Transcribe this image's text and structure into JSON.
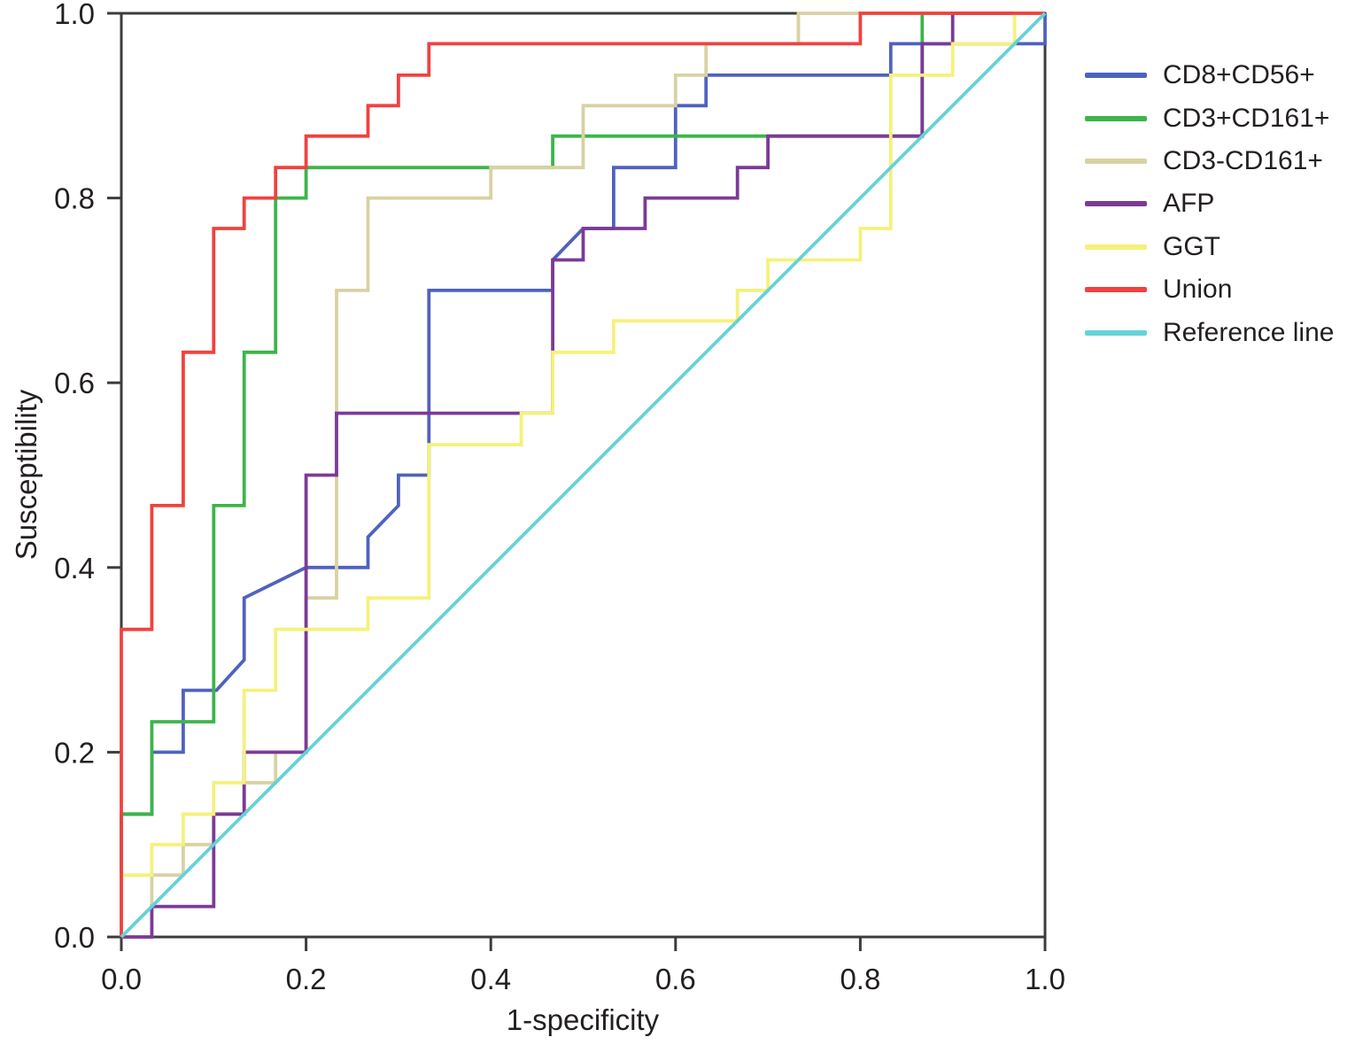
{
  "chart_data": {
    "type": "line",
    "subtype": "roc-step-curves",
    "title": "",
    "xlabel": "1-specificity",
    "ylabel": "Susceptibility",
    "xlim": [
      0,
      1
    ],
    "ylim": [
      0,
      1
    ],
    "grid": false,
    "legend_position": "right-outside",
    "axis_color": "#3c3c3c",
    "text_color": "#231f20",
    "background_color": "#ffffff",
    "x_ticks": [
      0.0,
      0.2,
      0.4,
      0.6,
      0.8,
      1.0
    ],
    "x_tick_labels": [
      "0.0",
      "0.2",
      "0.4",
      "0.6",
      "0.8",
      "1.0"
    ],
    "y_ticks": [
      0.0,
      0.2,
      0.4,
      0.6,
      0.8,
      1.0
    ],
    "y_tick_labels": [
      "0.0",
      "0.2",
      "0.4",
      "0.6",
      "0.8",
      "1.0"
    ],
    "series": [
      {
        "name": "CD8+CD56+",
        "color": "#4f62bf",
        "points": [
          [
            0,
            0
          ],
          [
            0,
            0.133
          ],
          [
            0.033,
            0.133
          ],
          [
            0.033,
            0.2
          ],
          [
            0.067,
            0.2
          ],
          [
            0.067,
            0.267
          ],
          [
            0.103,
            0.267
          ],
          [
            0.133,
            0.3
          ],
          [
            0.133,
            0.367
          ],
          [
            0.2,
            0.4
          ],
          [
            0.267,
            0.4
          ],
          [
            0.267,
            0.433
          ],
          [
            0.3,
            0.467
          ],
          [
            0.3,
            0.5
          ],
          [
            0.333,
            0.5
          ],
          [
            0.333,
            0.7
          ],
          [
            0.467,
            0.7
          ],
          [
            0.467,
            0.733
          ],
          [
            0.5,
            0.767
          ],
          [
            0.533,
            0.767
          ],
          [
            0.533,
            0.833
          ],
          [
            0.6,
            0.833
          ],
          [
            0.6,
            0.9
          ],
          [
            0.633,
            0.9
          ],
          [
            0.633,
            0.933
          ],
          [
            0.833,
            0.933
          ],
          [
            0.833,
            0.967
          ],
          [
            1,
            0.967
          ],
          [
            1,
            1
          ]
        ]
      },
      {
        "name": "CD3+CD161+",
        "color": "#3cb54a",
        "points": [
          [
            0,
            0
          ],
          [
            0,
            0.133
          ],
          [
            0.033,
            0.133
          ],
          [
            0.033,
            0.233
          ],
          [
            0.1,
            0.233
          ],
          [
            0.1,
            0.467
          ],
          [
            0.133,
            0.467
          ],
          [
            0.133,
            0.633
          ],
          [
            0.167,
            0.633
          ],
          [
            0.167,
            0.8
          ],
          [
            0.2,
            0.8
          ],
          [
            0.2,
            0.833
          ],
          [
            0.467,
            0.833
          ],
          [
            0.467,
            0.867
          ],
          [
            0.867,
            0.867
          ],
          [
            0.867,
            1
          ],
          [
            1,
            1
          ]
        ]
      },
      {
        "name": "CD3-CD161+",
        "color": "#d8d2a3",
        "points": [
          [
            0,
            0
          ],
          [
            0.033,
            0
          ],
          [
            0.033,
            0.067
          ],
          [
            0.067,
            0.067
          ],
          [
            0.067,
            0.1
          ],
          [
            0.1,
            0.1
          ],
          [
            0.1,
            0.133
          ],
          [
            0.133,
            0.133
          ],
          [
            0.133,
            0.167
          ],
          [
            0.167,
            0.167
          ],
          [
            0.167,
            0.2
          ],
          [
            0.2,
            0.2
          ],
          [
            0.2,
            0.367
          ],
          [
            0.233,
            0.367
          ],
          [
            0.233,
            0.7
          ],
          [
            0.267,
            0.7
          ],
          [
            0.267,
            0.8
          ],
          [
            0.4,
            0.8
          ],
          [
            0.4,
            0.833
          ],
          [
            0.5,
            0.833
          ],
          [
            0.5,
            0.9
          ],
          [
            0.6,
            0.9
          ],
          [
            0.6,
            0.933
          ],
          [
            0.633,
            0.933
          ],
          [
            0.633,
            0.967
          ],
          [
            0.733,
            0.967
          ],
          [
            0.733,
            1
          ],
          [
            1,
            1
          ]
        ]
      },
      {
        "name": "AFP",
        "color": "#7c3a97",
        "points": [
          [
            0,
            0
          ],
          [
            0.033,
            0
          ],
          [
            0.033,
            0.033
          ],
          [
            0.1,
            0.033
          ],
          [
            0.1,
            0.133
          ],
          [
            0.133,
            0.133
          ],
          [
            0.133,
            0.2
          ],
          [
            0.2,
            0.2
          ],
          [
            0.2,
            0.5
          ],
          [
            0.233,
            0.5
          ],
          [
            0.233,
            0.567
          ],
          [
            0.467,
            0.567
          ],
          [
            0.467,
            0.733
          ],
          [
            0.5,
            0.733
          ],
          [
            0.5,
            0.767
          ],
          [
            0.567,
            0.767
          ],
          [
            0.567,
            0.8
          ],
          [
            0.667,
            0.8
          ],
          [
            0.667,
            0.833
          ],
          [
            0.7,
            0.833
          ],
          [
            0.7,
            0.867
          ],
          [
            0.867,
            0.867
          ],
          [
            0.867,
            0.967
          ],
          [
            0.9,
            0.967
          ],
          [
            0.9,
            1
          ],
          [
            1,
            1
          ]
        ]
      },
      {
        "name": "GGT",
        "color": "#f5f17b",
        "points": [
          [
            0,
            0
          ],
          [
            0,
            0.067
          ],
          [
            0.033,
            0.067
          ],
          [
            0.033,
            0.1
          ],
          [
            0.067,
            0.1
          ],
          [
            0.067,
            0.133
          ],
          [
            0.1,
            0.133
          ],
          [
            0.1,
            0.167
          ],
          [
            0.133,
            0.167
          ],
          [
            0.133,
            0.267
          ],
          [
            0.167,
            0.267
          ],
          [
            0.167,
            0.333
          ],
          [
            0.267,
            0.333
          ],
          [
            0.267,
            0.367
          ],
          [
            0.333,
            0.367
          ],
          [
            0.333,
            0.533
          ],
          [
            0.433,
            0.533
          ],
          [
            0.433,
            0.567
          ],
          [
            0.467,
            0.567
          ],
          [
            0.467,
            0.633
          ],
          [
            0.533,
            0.633
          ],
          [
            0.533,
            0.667
          ],
          [
            0.667,
            0.667
          ],
          [
            0.667,
            0.7
          ],
          [
            0.7,
            0.7
          ],
          [
            0.7,
            0.733
          ],
          [
            0.8,
            0.733
          ],
          [
            0.8,
            0.767
          ],
          [
            0.833,
            0.767
          ],
          [
            0.833,
            0.933
          ],
          [
            0.9,
            0.933
          ],
          [
            0.9,
            0.967
          ],
          [
            0.967,
            0.967
          ],
          [
            0.967,
            1
          ],
          [
            1,
            1
          ]
        ]
      },
      {
        "name": "Union",
        "color": "#f0423f",
        "points": [
          [
            0,
            0
          ],
          [
            0,
            0.333
          ],
          [
            0.033,
            0.333
          ],
          [
            0.033,
            0.467
          ],
          [
            0.067,
            0.467
          ],
          [
            0.067,
            0.633
          ],
          [
            0.1,
            0.633
          ],
          [
            0.1,
            0.767
          ],
          [
            0.133,
            0.767
          ],
          [
            0.133,
            0.8
          ],
          [
            0.167,
            0.8
          ],
          [
            0.167,
            0.833
          ],
          [
            0.2,
            0.833
          ],
          [
            0.2,
            0.867
          ],
          [
            0.267,
            0.867
          ],
          [
            0.267,
            0.9
          ],
          [
            0.3,
            0.9
          ],
          [
            0.3,
            0.933
          ],
          [
            0.333,
            0.933
          ],
          [
            0.333,
            0.967
          ],
          [
            0.8,
            0.967
          ],
          [
            0.8,
            1
          ],
          [
            1,
            1
          ]
        ]
      },
      {
        "name": "Reference line",
        "color": "#64d2d8",
        "points": [
          [
            0,
            0
          ],
          [
            1,
            1
          ]
        ]
      }
    ]
  }
}
